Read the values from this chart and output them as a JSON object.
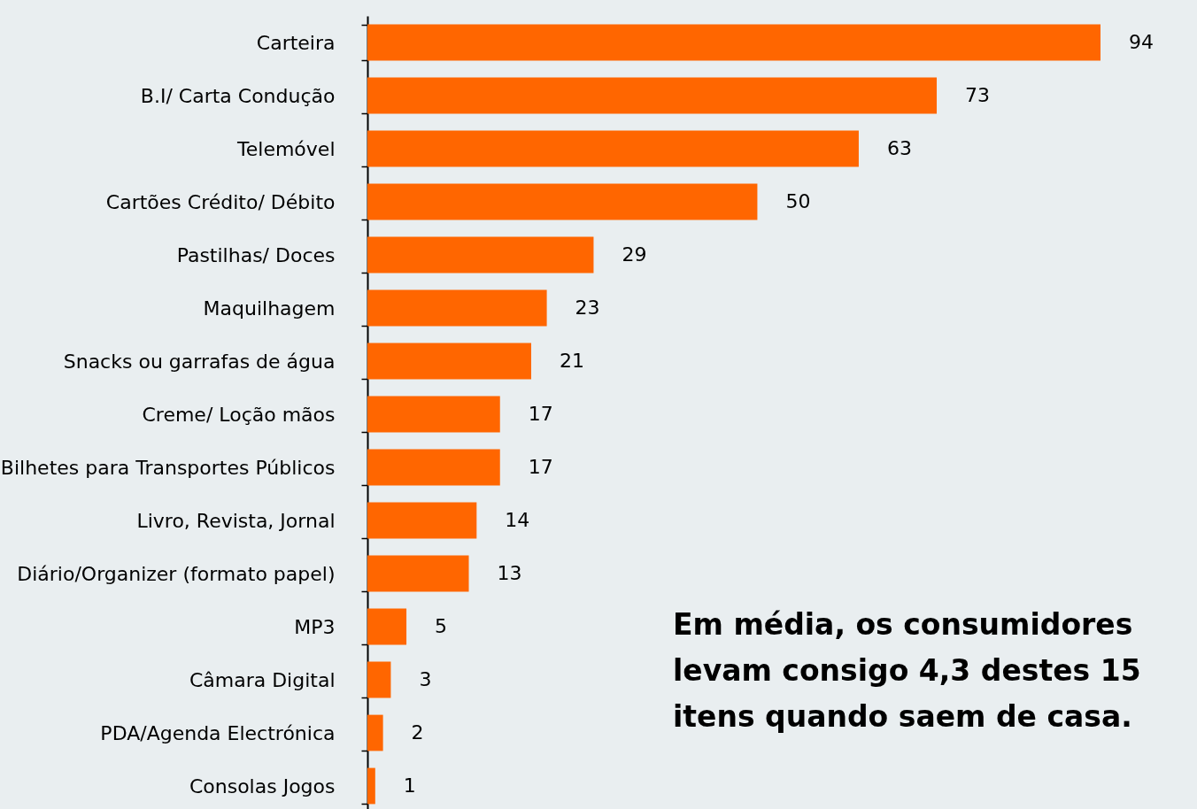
{
  "chart_data": {
    "type": "bar",
    "orientation": "horizontal",
    "data_labels": true,
    "color": "#ff6600",
    "categories": [
      "Carteira",
      "B.I/ Carta Condução",
      "Telemóvel",
      "Cartões Crédito/ Débito",
      "Pastilhas/ Doces",
      "Maquilhagem",
      "Snacks ou garrafas de água",
      "Creme/ Loção mãos",
      "Bilhetes para Transportes Públicos",
      "Livro, Revista, Jornal",
      "Diário/Organizer (formato papel)",
      "MP3",
      "Câmara Digital",
      "PDA/Agenda Electrónica",
      "Consolas Jogos"
    ],
    "values": [
      94,
      73,
      63,
      50,
      29,
      23,
      21,
      17,
      17,
      14,
      13,
      5,
      3,
      2,
      1
    ],
    "annotations": [
      "Em média, os consumidores levam consigo 4,3 destes 15 itens quando saem de casa."
    ]
  }
}
